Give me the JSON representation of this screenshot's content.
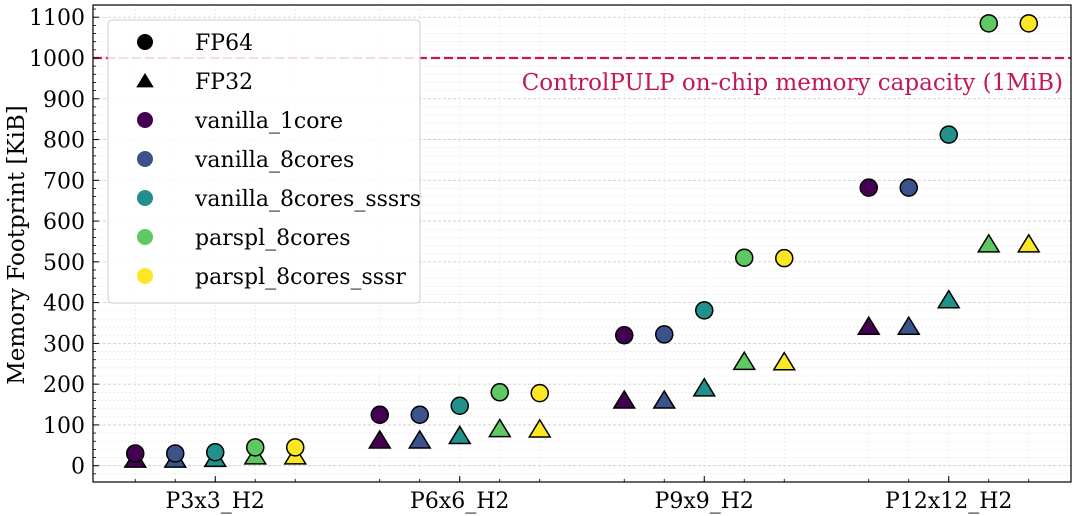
{
  "chart_data": {
    "type": "scatter",
    "title": "",
    "xlabel": "",
    "ylabel": "Memory Footprint [KiB]",
    "ylim": [
      -40,
      1130
    ],
    "yticks": [
      0,
      100,
      200,
      300,
      400,
      500,
      600,
      700,
      800,
      900,
      1000,
      1100
    ],
    "categories": [
      "P3x3_H2",
      "P6x6_H2",
      "P9x9_H2",
      "P12x12_H2"
    ],
    "grid": true,
    "legend_position": "top-left",
    "markers": [
      {
        "name": "FP64",
        "shape": "circle"
      },
      {
        "name": "FP32",
        "shape": "triangle"
      }
    ],
    "series": [
      {
        "name": "vanilla_1core",
        "color": "#440154",
        "fp64": [
          30,
          125,
          320,
          682
        ],
        "fp32": [
          15,
          62,
          160,
          341
        ]
      },
      {
        "name": "vanilla_8cores",
        "color": "#3b528b",
        "fp64": [
          30,
          125,
          322,
          682
        ],
        "fp32": [
          15,
          62,
          160,
          341
        ]
      },
      {
        "name": "vanilla_8cores_sssrs",
        "color": "#21918c",
        "fp64": [
          33,
          147,
          381,
          812
        ],
        "fp32": [
          17,
          73,
          190,
          406
        ]
      },
      {
        "name": "parspl_8cores",
        "color": "#5ec962",
        "fp64": [
          45,
          180,
          510,
          1085
        ],
        "fp32": [
          23,
          90,
          255,
          543
        ]
      },
      {
        "name": "parspl_8cores_sssr",
        "color": "#fde725",
        "fp64": [
          45,
          178,
          509,
          1085
        ],
        "fp32": [
          23,
          89,
          254,
          543
        ]
      }
    ],
    "reference_line": {
      "value": 1000,
      "label": "ControlPULP on-chip memory capacity (1MiB)",
      "color": "#c2185b"
    }
  }
}
